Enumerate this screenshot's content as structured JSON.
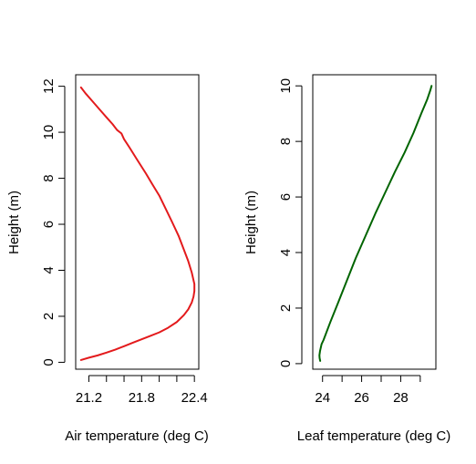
{
  "chart_data": [
    {
      "type": "line",
      "title": "",
      "xlabel": "Air temperature (deg C)",
      "ylabel": "Height (m)",
      "xlim": [
        21.05,
        22.45
      ],
      "ylim": [
        -0.3,
        12.5
      ],
      "xticks": [
        21.2,
        21.4,
        21.6,
        21.8,
        22.0,
        22.2,
        22.4
      ],
      "xtick_labels": [
        "21.2",
        "",
        "",
        "21.8",
        "",
        "",
        "22.4"
      ],
      "yticks": [
        0,
        2,
        4,
        6,
        8,
        10,
        12
      ],
      "ytick_labels": [
        "0",
        "2",
        "4",
        "6",
        "8",
        "10",
        "12"
      ],
      "grid": false,
      "color": "#e31a1c",
      "series": [
        {
          "x": [
            21.11,
            21.2,
            21.3,
            21.4,
            21.5,
            21.6,
            21.7,
            21.8,
            21.9,
            22.0,
            22.1,
            22.2,
            22.28,
            22.33,
            22.37,
            22.39,
            22.4,
            22.4,
            22.37,
            22.33,
            22.28,
            22.22,
            22.14,
            22.07,
            22.0,
            21.92,
            21.85,
            21.75,
            21.66,
            21.6,
            21.57,
            21.52,
            21.47,
            21.4,
            21.32,
            21.24,
            21.16,
            21.11
          ],
          "y": [
            0.1,
            0.2,
            0.3,
            0.42,
            0.55,
            0.7,
            0.85,
            1.0,
            1.15,
            1.3,
            1.5,
            1.75,
            2.05,
            2.3,
            2.6,
            2.85,
            3.1,
            3.4,
            3.9,
            4.4,
            4.9,
            5.5,
            6.15,
            6.7,
            7.25,
            7.75,
            8.2,
            8.8,
            9.35,
            9.7,
            9.95,
            10.1,
            10.35,
            10.65,
            11.0,
            11.35,
            11.7,
            11.95
          ]
        }
      ]
    },
    {
      "type": "line",
      "title": "",
      "xlabel": "Leaf temperature (deg C)",
      "ylabel": "Height (m)",
      "xlim": [
        23.5,
        29.8
      ],
      "ylim": [
        -0.2,
        10.4
      ],
      "xticks": [
        24,
        25,
        26,
        27,
        28,
        29
      ],
      "xtick_labels": [
        "24",
        "",
        "26",
        "",
        "28",
        ""
      ],
      "yticks": [
        0,
        2,
        4,
        6,
        8,
        10
      ],
      "ytick_labels": [
        "0",
        "2",
        "4",
        "6",
        "8",
        "10"
      ],
      "grid": false,
      "color": "#006400",
      "series": [
        {
          "x": [
            23.88,
            23.85,
            23.84,
            23.87,
            23.95,
            24.05,
            24.4,
            24.8,
            25.25,
            25.7,
            26.2,
            26.7,
            27.2,
            27.7,
            28.2,
            28.65,
            29.05,
            29.35,
            29.52,
            29.58
          ],
          "y": [
            0.1,
            0.2,
            0.3,
            0.45,
            0.7,
            0.85,
            1.5,
            2.2,
            3.0,
            3.8,
            4.6,
            5.4,
            6.15,
            6.9,
            7.6,
            8.3,
            9.0,
            9.5,
            9.85,
            10.0
          ]
        }
      ]
    }
  ]
}
